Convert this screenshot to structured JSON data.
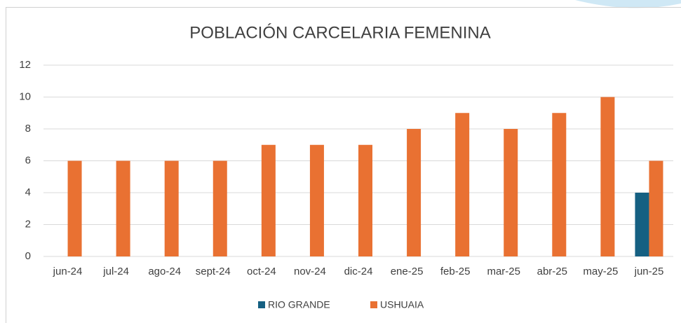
{
  "chart_data": {
    "type": "bar",
    "title": "POBLACIÓN CARCELARIA FEMENINA",
    "categories": [
      "jun-24",
      "jul-24",
      "ago-24",
      "sept-24",
      "oct-24",
      "nov-24",
      "dic-24",
      "ene-25",
      "feb-25",
      "mar-25",
      "abr-25",
      "may-25",
      "jun-25"
    ],
    "series": [
      {
        "name": "RIO GRANDE",
        "color": "#156082",
        "values": [
          null,
          null,
          null,
          null,
          null,
          null,
          null,
          null,
          null,
          null,
          null,
          null,
          4
        ]
      },
      {
        "name": "USHUAIA",
        "color": "#e97132",
        "values": [
          6,
          6,
          6,
          6,
          7,
          7,
          7,
          8,
          9,
          8,
          9,
          10,
          6
        ]
      }
    ],
    "ylim": [
      0,
      12
    ],
    "yticks": [
      0,
      2,
      4,
      6,
      8,
      10,
      12
    ],
    "grid": true,
    "legend": "bottom"
  }
}
